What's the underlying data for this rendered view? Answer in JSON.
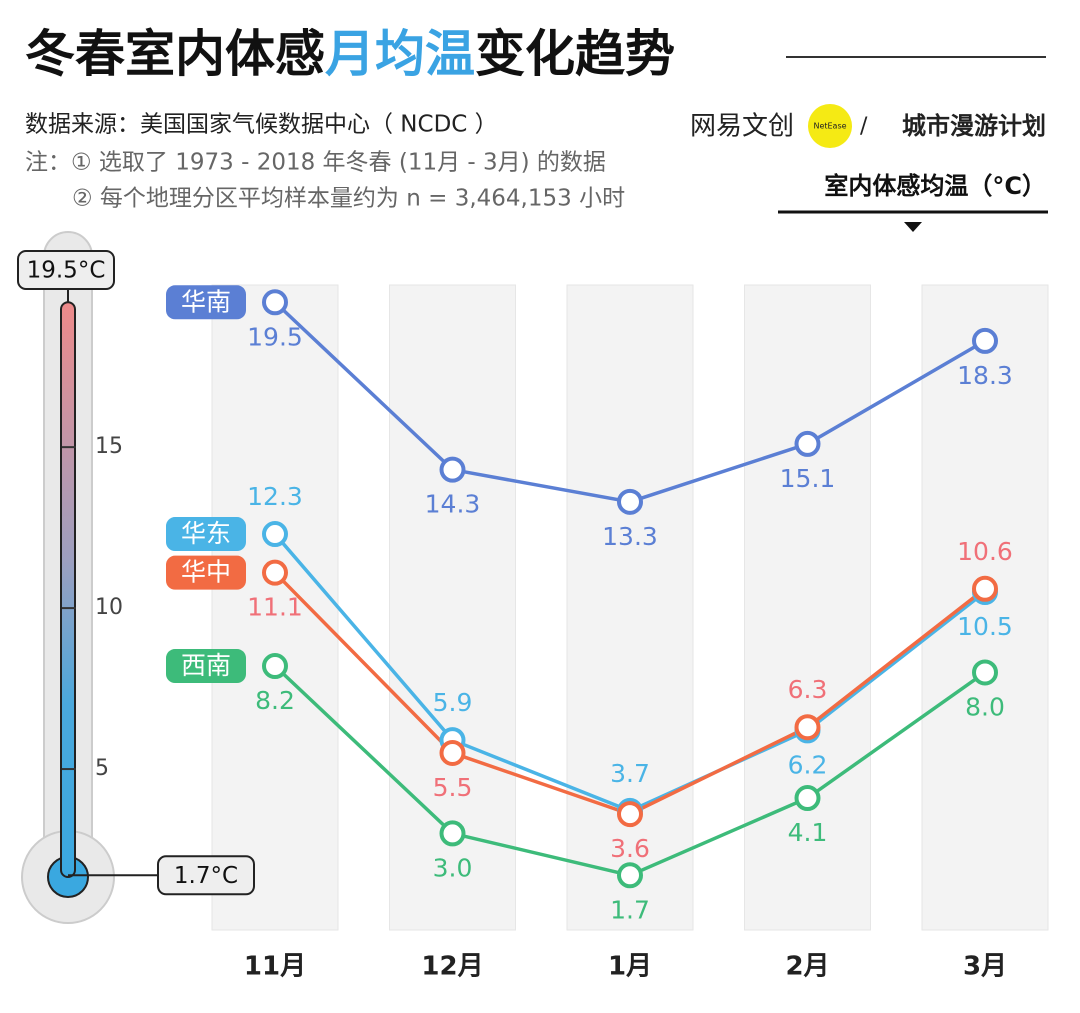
{
  "chart_data": {
    "type": "line",
    "title": [
      "冬春室内体感",
      "月均温",
      "变化趋势"
    ],
    "title_highlight_color": "#3aa3e3",
    "source": "数据来源：美国国家气候数据中心（ NCDC ）",
    "notes": [
      "注：① 选取了 1973 - 2018 年冬春 (11月 - 3月) 的数据",
      "② 每个地理分区平均样本量约为 n = 3,464,153 小时"
    ],
    "brand": {
      "left": "网易文创",
      "badge": "NetEase",
      "right": "城市漫游计划"
    },
    "y_label": "室内体感均温（°C）",
    "categories": [
      "11月",
      "12月",
      "1月",
      "2月",
      "3月"
    ],
    "series": [
      {
        "name": "华南",
        "color": "#5b7fd4",
        "label_color": "#5b7fd4",
        "values": [
          19.5,
          14.3,
          13.3,
          15.1,
          18.3
        ],
        "value_labels": [
          "19.5",
          "14.3",
          "13.3",
          "15.1",
          "18.3"
        ]
      },
      {
        "name": "华东",
        "color": "#4ab4e6",
        "label_color": "#4ab4e6",
        "values": [
          12.3,
          5.9,
          3.7,
          6.2,
          10.5
        ],
        "value_labels": [
          "12.3",
          "5.9",
          "3.7",
          "6.2",
          "10.5"
        ]
      },
      {
        "name": "华中",
        "color": "#f26b43",
        "label_color": "#f07078",
        "values": [
          11.1,
          5.5,
          3.6,
          6.3,
          10.6
        ],
        "value_labels": [
          "11.1",
          "5.5",
          "3.6",
          "6.3",
          "10.6"
        ]
      },
      {
        "name": "西南",
        "color": "#3dbb7a",
        "label_color": "#3dbb7a",
        "values": [
          8.2,
          3.0,
          1.7,
          4.1,
          8.0
        ],
        "value_labels": [
          "8.2",
          "3.0",
          "1.7",
          "4.1",
          "8.0"
        ]
      }
    ],
    "ylim": [
      0,
      21
    ],
    "yticks": [
      5,
      10,
      15
    ],
    "range_labels": [
      {
        "value": 1.7,
        "label": "1.7°C"
      },
      {
        "value": 19.5,
        "label": "19.5°C"
      }
    ]
  }
}
